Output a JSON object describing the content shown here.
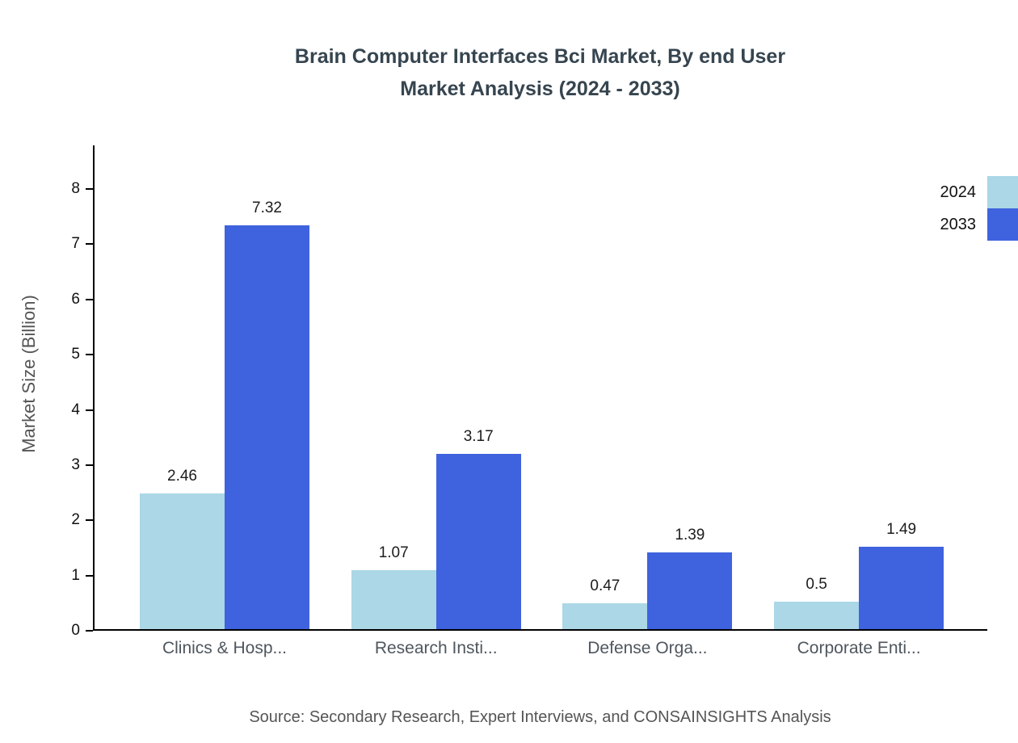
{
  "header": {
    "title_line1": "Brain Computer Interfaces Bci Market, By end User",
    "title_line2": "Market Analysis (2024 - 2033)"
  },
  "chart_data": {
    "type": "bar",
    "title": "Brain Computer Interfaces Bci Market, By end User Market Analysis (2024 - 2033)",
    "categories": [
      "Clinics & Hosp...",
      "Research Insti...",
      "Defense Orga...",
      "Corporate Enti..."
    ],
    "series": [
      {
        "name": "2024",
        "color": "#ABD7E6",
        "values": [
          2.46,
          1.07,
          0.47,
          0.5
        ]
      },
      {
        "name": "2033",
        "color": "#3F63DE",
        "values": [
          7.32,
          3.17,
          1.39,
          1.49
        ]
      }
    ],
    "xlabel": "",
    "ylabel": "Market Size (Billion)",
    "ylim": [
      0,
      8
    ],
    "yticks": [
      0,
      1,
      2,
      3,
      4,
      5,
      6,
      7,
      8
    ],
    "grid": false,
    "legend_position": "top-right"
  },
  "footer": {
    "source": "Source: Secondary Research, Expert Interviews, and CONSAINSIGHTS Analysis"
  }
}
